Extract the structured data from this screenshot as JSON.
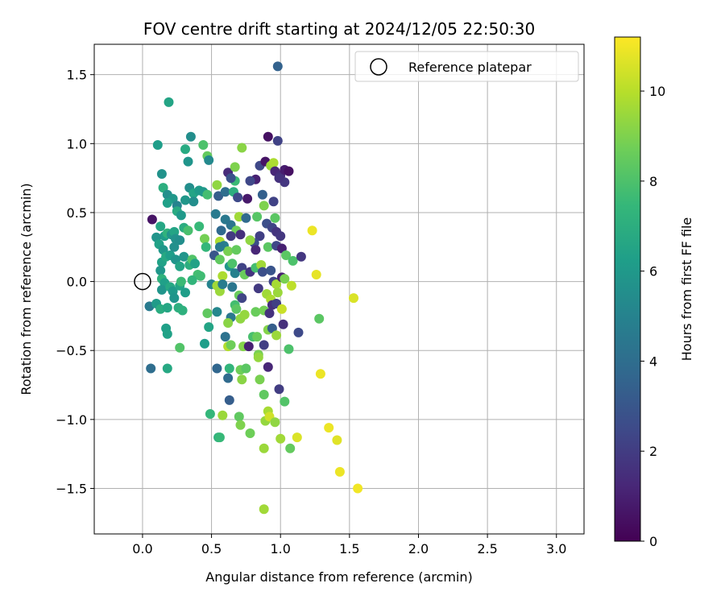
{
  "chart_data": {
    "type": "scatter",
    "title": "FOV centre drift starting at 2024/12/05 22:50:30",
    "xlabel": "Angular distance from reference (arcmin)",
    "ylabel": "Rotation from reference (arcmin)",
    "xlim": [
      -0.35,
      3.2
    ],
    "ylim": [
      -1.83,
      1.72
    ],
    "xticks": [
      "0.0",
      "0.5",
      "1.0",
      "1.5",
      "2.0",
      "2.5",
      "3.0"
    ],
    "xtick_values": [
      0,
      0.5,
      1.0,
      1.5,
      2.0,
      2.5,
      3.0
    ],
    "yticks": [
      "−1.5",
      "−1.0",
      "−0.5",
      "0.0",
      "0.5",
      "1.0",
      "1.5"
    ],
    "ytick_values": [
      -1.5,
      -1.0,
      -0.5,
      0,
      0.5,
      1.0,
      1.5
    ],
    "grid": true,
    "legend": {
      "label": "Reference platepar",
      "placement": "top-right"
    },
    "reference_point": {
      "x": 0.0,
      "y": 0.0
    },
    "colorbar": {
      "label": "Hours from first FF file",
      "colormap": "viridis",
      "range": [
        0,
        11.2
      ],
      "ticks": [
        "0",
        "2",
        "4",
        "6",
        "8",
        "10"
      ],
      "tick_values": [
        0,
        2,
        4,
        6,
        8,
        10
      ]
    },
    "colormap_stops": [
      "#440154",
      "#482878",
      "#3e4a89",
      "#31688e",
      "#26828e",
      "#1f9e89",
      "#35b779",
      "#6ece58",
      "#b5de2b",
      "#fde725"
    ],
    "points": [
      [
        0.98,
        1.56,
        3.5
      ],
      [
        0.19,
        1.3,
        6.5
      ],
      [
        0.11,
        0.99,
        6.2
      ],
      [
        0.35,
        1.05,
        5.5
      ],
      [
        0.31,
        0.96,
        6.8
      ],
      [
        0.33,
        0.87,
        5.8
      ],
      [
        0.44,
        0.99,
        8.0
      ],
      [
        0.47,
        0.91,
        8.5
      ],
      [
        0.48,
        0.88,
        5.3
      ],
      [
        0.72,
        0.97,
        9.2
      ],
      [
        0.85,
        0.84,
        2.4
      ],
      [
        0.91,
        1.05,
        0.5
      ],
      [
        0.98,
        1.02,
        2.2
      ],
      [
        0.89,
        0.87,
        0.6
      ],
      [
        0.93,
        0.84,
        9.5
      ],
      [
        0.95,
        0.86,
        9.8
      ],
      [
        0.96,
        0.8,
        1.2
      ],
      [
        1.0,
        0.77,
        1.4
      ],
      [
        1.03,
        0.81,
        0.9
      ],
      [
        1.06,
        0.8,
        0.5
      ],
      [
        1.03,
        0.72,
        1.8
      ],
      [
        0.99,
        0.75,
        1.6
      ],
      [
        0.82,
        0.74,
        1.0
      ],
      [
        0.78,
        0.73,
        2.4
      ],
      [
        0.62,
        0.79,
        1.4
      ],
      [
        0.67,
        0.83,
        9.0
      ],
      [
        0.67,
        0.73,
        7.6
      ],
      [
        0.64,
        0.75,
        2.8
      ],
      [
        0.14,
        0.78,
        5.7
      ],
      [
        0.15,
        0.68,
        7.0
      ],
      [
        0.18,
        0.63,
        5.6
      ],
      [
        0.22,
        0.6,
        5.9
      ],
      [
        0.34,
        0.68,
        5.5
      ],
      [
        0.37,
        0.64,
        6.5
      ],
      [
        0.41,
        0.66,
        6.1
      ],
      [
        0.44,
        0.65,
        6.0
      ],
      [
        0.47,
        0.63,
        7.8
      ],
      [
        0.54,
        0.7,
        9.3
      ],
      [
        0.55,
        0.62,
        3.3
      ],
      [
        0.6,
        0.65,
        4.0
      ],
      [
        0.66,
        0.65,
        7.0
      ],
      [
        0.69,
        0.61,
        2.5
      ],
      [
        0.76,
        0.6,
        0.8
      ],
      [
        0.87,
        0.63,
        3.4
      ],
      [
        0.88,
        0.55,
        9.0
      ],
      [
        0.95,
        0.58,
        2.2
      ],
      [
        0.96,
        0.46,
        8.3
      ],
      [
        0.18,
        0.57,
        6.3
      ],
      [
        0.25,
        0.55,
        5.0
      ],
      [
        0.25,
        0.51,
        6.8
      ],
      [
        0.28,
        0.48,
        6.0
      ],
      [
        0.31,
        0.59,
        5.9
      ],
      [
        0.37,
        0.58,
        5.5
      ],
      [
        0.07,
        0.45,
        0.6
      ],
      [
        0.13,
        0.4,
        6.6
      ],
      [
        0.16,
        0.33,
        6.2
      ],
      [
        0.1,
        0.32,
        5.8
      ],
      [
        0.12,
        0.27,
        6.4
      ],
      [
        0.15,
        0.23,
        5.9
      ],
      [
        0.18,
        0.35,
        7.2
      ],
      [
        0.21,
        0.34,
        5.8
      ],
      [
        0.23,
        0.36,
        6.5
      ],
      [
        0.24,
        0.31,
        5.7
      ],
      [
        0.27,
        0.3,
        5.5
      ],
      [
        0.3,
        0.39,
        6.9
      ],
      [
        0.33,
        0.37,
        7.9
      ],
      [
        0.41,
        0.4,
        7.5
      ],
      [
        0.45,
        0.31,
        8.8
      ],
      [
        0.53,
        0.49,
        4.6
      ],
      [
        0.57,
        0.37,
        3.8
      ],
      [
        0.6,
        0.45,
        4.5
      ],
      [
        0.64,
        0.41,
        4.3
      ],
      [
        0.68,
        0.37,
        8.7
      ],
      [
        0.7,
        0.47,
        9.6
      ],
      [
        0.71,
        0.34,
        1.5
      ],
      [
        0.75,
        0.46,
        3.9
      ],
      [
        0.83,
        0.47,
        8.2
      ],
      [
        0.9,
        0.42,
        2.7
      ],
      [
        0.94,
        0.39,
        2.3
      ],
      [
        0.97,
        0.36,
        1.7
      ],
      [
        0.85,
        0.33,
        2.1
      ],
      [
        0.81,
        0.28,
        2.6
      ],
      [
        0.78,
        0.3,
        9.3
      ],
      [
        0.64,
        0.33,
        1.9
      ],
      [
        0.56,
        0.29,
        9.8
      ],
      [
        0.59,
        0.26,
        4.8
      ],
      [
        0.62,
        0.22,
        8.9
      ],
      [
        0.68,
        0.23,
        8.5
      ],
      [
        0.82,
        0.23,
        1.2
      ],
      [
        0.91,
        0.25,
        8.3
      ],
      [
        0.97,
        0.26,
        2.4
      ],
      [
        1.0,
        0.33,
        1.8
      ],
      [
        1.01,
        0.24,
        1.0
      ],
      [
        1.04,
        0.19,
        8.3
      ],
      [
        1.09,
        0.15,
        8.0
      ],
      [
        1.15,
        0.18,
        1.8
      ],
      [
        1.23,
        0.37,
        10.9
      ],
      [
        1.26,
        0.05,
        10.8
      ],
      [
        0.14,
        0.14,
        6.4
      ],
      [
        0.13,
        0.08,
        5.9
      ],
      [
        0.17,
        0.18,
        6.7
      ],
      [
        0.2,
        0.19,
        6.2
      ],
      [
        0.23,
        0.25,
        5.6
      ],
      [
        0.24,
        0.16,
        5.8
      ],
      [
        0.27,
        0.11,
        6.5
      ],
      [
        0.3,
        0.18,
        5.8
      ],
      [
        0.34,
        0.12,
        7.0
      ],
      [
        0.36,
        0.16,
        8.1
      ],
      [
        0.38,
        0.13,
        6.4
      ],
      [
        0.4,
        0.05,
        7.8
      ],
      [
        0.46,
        0.25,
        7.4
      ],
      [
        0.52,
        0.19,
        3.0
      ],
      [
        0.56,
        0.25,
        4.6
      ],
      [
        0.56,
        0.16,
        8.4
      ],
      [
        0.58,
        0.04,
        9.8
      ],
      [
        0.63,
        0.11,
        5.9
      ],
      [
        0.65,
        0.13,
        8.0
      ],
      [
        0.67,
        0.06,
        4.9
      ],
      [
        0.72,
        0.1,
        2.2
      ],
      [
        0.74,
        0.05,
        8.6
      ],
      [
        0.78,
        0.07,
        1.7
      ],
      [
        0.82,
        0.1,
        7.8
      ],
      [
        0.86,
        0.12,
        9.6
      ],
      [
        0.87,
        0.07,
        2.7
      ],
      [
        0.93,
        0.08,
        2.9
      ],
      [
        0.95,
        0.0,
        2.3
      ],
      [
        0.97,
        -0.02,
        9.7
      ],
      [
        1.01,
        0.03,
        1.0
      ],
      [
        1.03,
        0.02,
        8.9
      ],
      [
        1.08,
        -0.03,
        10.1
      ],
      [
        0.14,
        0.02,
        7.2
      ],
      [
        0.16,
        -0.01,
        6.3
      ],
      [
        0.14,
        -0.06,
        5.8
      ],
      [
        0.2,
        -0.04,
        6.7
      ],
      [
        0.22,
        -0.07,
        6.0
      ],
      [
        0.23,
        -0.12,
        5.8
      ],
      [
        0.27,
        -0.03,
        6.5
      ],
      [
        0.28,
        0.0,
        7.6
      ],
      [
        0.31,
        -0.08,
        6.2
      ],
      [
        0.36,
        0.01,
        7.3
      ],
      [
        0.42,
        0.04,
        7.7
      ],
      [
        0.5,
        -0.02,
        5.0
      ],
      [
        0.54,
        -0.03,
        9.6
      ],
      [
        0.56,
        -0.07,
        9.5
      ],
      [
        0.58,
        -0.02,
        4.7
      ],
      [
        0.65,
        -0.04,
        4.4
      ],
      [
        0.7,
        -0.1,
        8.6
      ],
      [
        0.67,
        -0.17,
        7.8
      ],
      [
        0.68,
        -0.2,
        8.3
      ],
      [
        0.72,
        -0.12,
        2.3
      ],
      [
        0.84,
        -0.05,
        1.9
      ],
      [
        0.9,
        -0.09,
        9.6
      ],
      [
        0.93,
        -0.13,
        9.8
      ],
      [
        0.94,
        -0.17,
        1.5
      ],
      [
        0.97,
        -0.16,
        2.1
      ],
      [
        0.98,
        -0.08,
        9.5
      ],
      [
        1.01,
        -0.2,
        10.3
      ],
      [
        0.05,
        -0.18,
        4.6
      ],
      [
        0.1,
        -0.16,
        6.1
      ],
      [
        0.13,
        -0.2,
        6.9
      ],
      [
        0.18,
        -0.19,
        6.6
      ],
      [
        0.26,
        -0.19,
        7.0
      ],
      [
        0.29,
        -0.21,
        7.1
      ],
      [
        0.47,
        -0.23,
        8.4
      ],
      [
        0.54,
        -0.22,
        5.2
      ],
      [
        0.64,
        -0.26,
        4.5
      ],
      [
        0.71,
        -0.27,
        9.3
      ],
      [
        0.74,
        -0.24,
        9.4
      ],
      [
        0.82,
        -0.22,
        8.6
      ],
      [
        0.88,
        -0.21,
        8.8
      ],
      [
        0.92,
        -0.23,
        1.6
      ],
      [
        1.02,
        -0.31,
        1.5
      ],
      [
        1.13,
        -0.37,
        2.5
      ],
      [
        1.28,
        -0.27,
        8.3
      ],
      [
        1.53,
        -0.12,
        10.6
      ],
      [
        0.17,
        -0.34,
        6.3
      ],
      [
        0.18,
        -0.38,
        6.4
      ],
      [
        0.48,
        -0.33,
        6.5
      ],
      [
        0.62,
        -0.3,
        9.2
      ],
      [
        0.73,
        -0.47,
        9.1
      ],
      [
        0.77,
        -0.47,
        1.0
      ],
      [
        0.8,
        -0.4,
        7.9
      ],
      [
        0.83,
        -0.4,
        8.6
      ],
      [
        0.88,
        -0.46,
        2.1
      ],
      [
        0.91,
        -0.35,
        9.1
      ],
      [
        0.94,
        -0.34,
        3.3
      ],
      [
        0.97,
        -0.39,
        9.5
      ],
      [
        0.27,
        -0.48,
        8.1
      ],
      [
        0.45,
        -0.45,
        6.2
      ],
      [
        0.6,
        -0.4,
        4.2
      ],
      [
        0.62,
        -0.47,
        9.9
      ],
      [
        0.64,
        -0.46,
        8.7
      ],
      [
        0.84,
        -0.53,
        8.9
      ],
      [
        0.84,
        -0.55,
        9.4
      ],
      [
        1.06,
        -0.49,
        8.0
      ],
      [
        0.06,
        -0.63,
        4.0
      ],
      [
        0.18,
        -0.63,
        6.7
      ],
      [
        0.54,
        -0.63,
        3.7
      ],
      [
        0.63,
        -0.63,
        7.3
      ],
      [
        0.62,
        -0.7,
        3.9
      ],
      [
        0.71,
        -0.64,
        8.7
      ],
      [
        0.75,
        -0.63,
        8.3
      ],
      [
        0.72,
        -0.71,
        9.2
      ],
      [
        0.85,
        -0.71,
        8.9
      ],
      [
        0.91,
        -0.62,
        1.2
      ],
      [
        0.99,
        -0.78,
        2.0
      ],
      [
        0.88,
        -0.82,
        8.4
      ],
      [
        1.03,
        -0.87,
        8.1
      ],
      [
        0.63,
        -0.86,
        3.3
      ],
      [
        1.29,
        -0.67,
        10.9
      ],
      [
        0.49,
        -0.96,
        7.4
      ],
      [
        0.58,
        -0.97,
        9.5
      ],
      [
        0.7,
        -0.98,
        8.4
      ],
      [
        0.71,
        -1.04,
        9.0
      ],
      [
        0.78,
        -1.1,
        8.7
      ],
      [
        0.89,
        -1.01,
        9.4
      ],
      [
        0.91,
        -0.94,
        9.7
      ],
      [
        0.92,
        -0.98,
        10.4
      ],
      [
        0.96,
        -1.02,
        9.3
      ],
      [
        1.35,
        -1.06,
        10.9
      ],
      [
        0.55,
        -1.13,
        7.1
      ],
      [
        0.56,
        -1.13,
        7.5
      ],
      [
        1.0,
        -1.14,
        9.6
      ],
      [
        1.12,
        -1.13,
        10.6
      ],
      [
        1.41,
        -1.15,
        10.7
      ],
      [
        0.88,
        -1.21,
        9.5
      ],
      [
        1.07,
        -1.21,
        8.5
      ],
      [
        1.43,
        -1.38,
        10.9
      ],
      [
        1.56,
        -1.5,
        11.0
      ],
      [
        0.88,
        -1.65,
        9.6
      ]
    ]
  }
}
